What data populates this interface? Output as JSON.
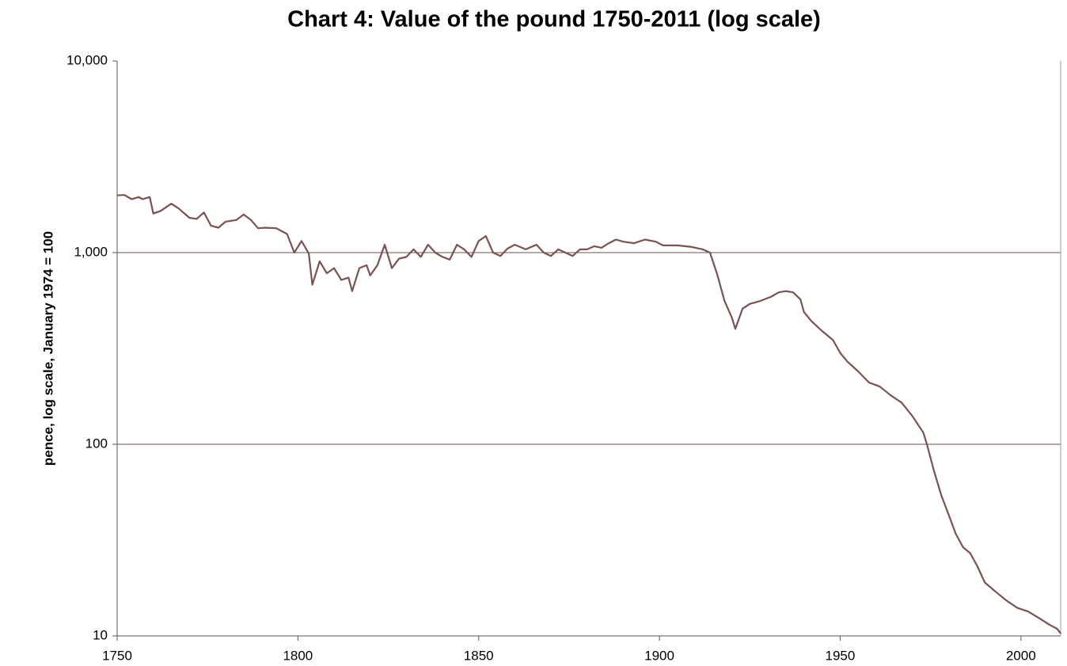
{
  "chart_data": {
    "type": "line",
    "title": "Chart 4: Value of the pound 1750-2011 (log scale)",
    "y_label": "pence, log scale, January 1974 = 100",
    "log_y": true,
    "grid": true,
    "xlim": [
      1750,
      2011
    ],
    "xticks": [
      1750,
      1800,
      1850,
      1900,
      1950,
      2000
    ],
    "ylim": [
      10,
      10000
    ],
    "yticks": [
      10,
      100,
      {
        "value": 1000,
        "label": "1,000"
      },
      {
        "value": 10000,
        "label": "10,000"
      }
    ],
    "x": [
      1750,
      1752,
      1754,
      1756,
      1757,
      1759,
      1760,
      1762,
      1765,
      1767,
      1770,
      1772,
      1774,
      1776,
      1778,
      1780,
      1783,
      1785,
      1787,
      1789,
      1791,
      1794,
      1797,
      1799,
      1801,
      1803,
      1804,
      1806,
      1808,
      1810,
      1812,
      1814,
      1815,
      1817,
      1819,
      1820,
      1822,
      1824,
      1826,
      1828,
      1830,
      1832,
      1834,
      1836,
      1838,
      1840,
      1842,
      1844,
      1846,
      1848,
      1850,
      1852,
      1854,
      1856,
      1858,
      1860,
      1863,
      1866,
      1868,
      1870,
      1872,
      1874,
      1876,
      1878,
      1880,
      1882,
      1884,
      1886,
      1888,
      1890,
      1893,
      1896,
      1899,
      1901,
      1905,
      1909,
      1912,
      1914,
      1916,
      1918,
      1920,
      1921,
      1923,
      1925,
      1928,
      1931,
      1933,
      1935,
      1937,
      1939,
      1940,
      1942,
      1945,
      1948,
      1950,
      1952,
      1955,
      1958,
      1961,
      1964,
      1967,
      1970,
      1973,
      1974,
      1976,
      1978,
      1980,
      1982,
      1984,
      1986,
      1988,
      1990,
      1993,
      1996,
      1999,
      2002,
      2005,
      2008,
      2010,
      2011
    ],
    "series": [
      {
        "name": "Value of the pound",
        "color": "#7a5252",
        "values": [
          1990,
          2000,
          1900,
          1950,
          1900,
          1950,
          1600,
          1650,
          1800,
          1700,
          1520,
          1500,
          1620,
          1380,
          1350,
          1450,
          1480,
          1580,
          1480,
          1340,
          1350,
          1340,
          1250,
          1000,
          1150,
          990,
          680,
          900,
          780,
          830,
          720,
          740,
          630,
          830,
          860,
          760,
          860,
          1100,
          830,
          930,
          950,
          1040,
          950,
          1100,
          1000,
          950,
          920,
          1100,
          1040,
          950,
          1150,
          1220,
          1000,
          960,
          1050,
          1100,
          1040,
          1100,
          1000,
          960,
          1040,
          1000,
          960,
          1040,
          1040,
          1080,
          1060,
          1120,
          1170,
          1140,
          1120,
          1170,
          1140,
          1090,
          1090,
          1070,
          1040,
          1000,
          770,
          560,
          460,
          400,
          510,
          540,
          560,
          590,
          620,
          630,
          620,
          570,
          490,
          440,
          390,
          350,
          300,
          270,
          240,
          210,
          200,
          180,
          165,
          140,
          115,
          100,
          72,
          54,
          43,
          34,
          29,
          27,
          23,
          19,
          17,
          15.3,
          14,
          13.4,
          12.4,
          11.4,
          10.9,
          10.3
        ]
      }
    ]
  }
}
